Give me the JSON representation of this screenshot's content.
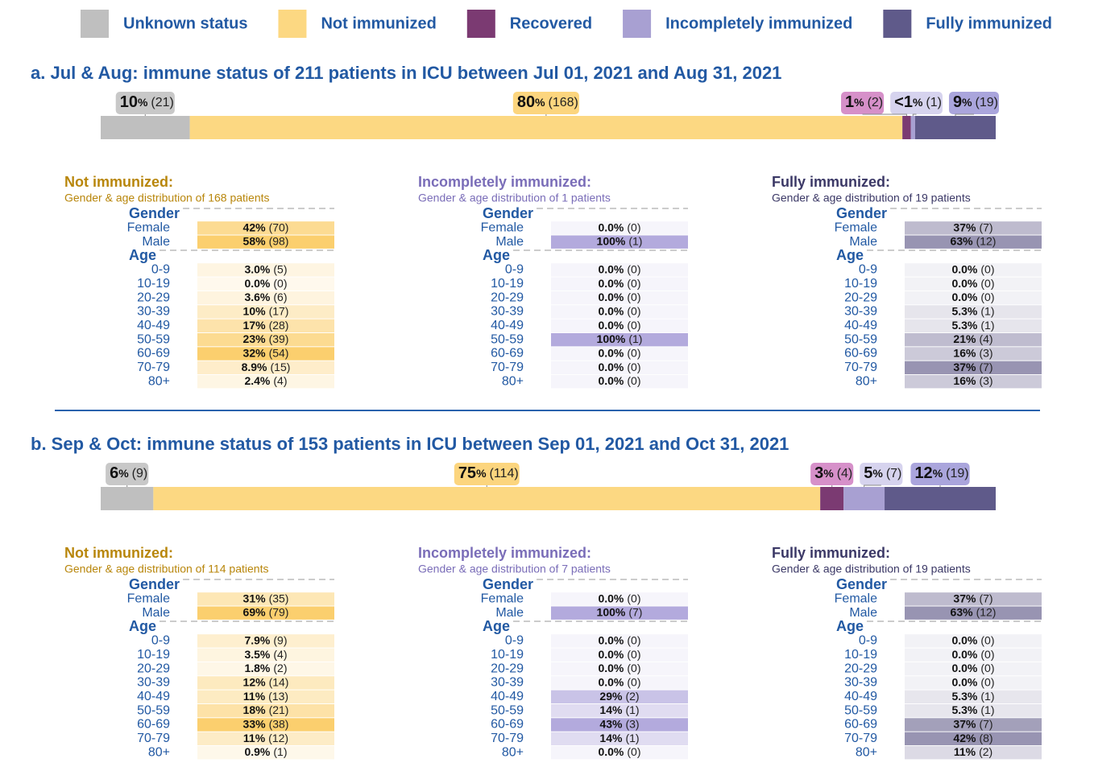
{
  "legend": [
    {
      "name": "Unknown status",
      "color": "#bfbfbf",
      "label_color": "#c8c8c8"
    },
    {
      "name": "Not immunized",
      "color": "#fcd882",
      "label_color": "#fcd57e"
    },
    {
      "name": "Recovered",
      "color": "#7b3a72",
      "label_color": "#d690c9"
    },
    {
      "name": "Incompletely immunized",
      "color": "#a8a0d2",
      "label_color": "#d6d3ee"
    },
    {
      "name": "Fully immunized",
      "color": "#5f5a8a",
      "label_color": "#aaa5dc"
    }
  ],
  "panels": [
    {
      "title": "a. Jul & Aug: immune status of 211 patients in ICU between Jul 01, 2021 and Aug 31, 2021",
      "segments": [
        {
          "value": 21,
          "pct": "10",
          "unit": "%",
          "count": "(21)"
        },
        {
          "value": 168,
          "pct": "80",
          "unit": "%",
          "count": "(168)"
        },
        {
          "value": 2,
          "pct": "1",
          "unit": "%",
          "count": "(2)"
        },
        {
          "value": 1,
          "pct": "<1",
          "unit": "%",
          "count": "(1)"
        },
        {
          "value": 19,
          "pct": "9",
          "unit": "%",
          "count": "(19)"
        }
      ],
      "breakdowns": [
        {
          "title": "Not immunized:",
          "subtitle": "Gender & age distribution of 168 patients",
          "title_color": "#b8860b",
          "cell_color": "#fbcf6e",
          "groups": [
            {
              "name": "Gender",
              "rows": [
                {
                  "label": "Female",
                  "pct": "42%",
                  "count": "(70)",
                  "value": 70
                },
                {
                  "label": "Male",
                  "pct": "58%",
                  "count": "(98)",
                  "value": 98
                }
              ]
            },
            {
              "name": "Age",
              "rows": [
                {
                  "label": "0-9",
                  "pct": "3.0%",
                  "count": "(5)",
                  "value": 5
                },
                {
                  "label": "10-19",
                  "pct": "0.0%",
                  "count": "(0)",
                  "value": 0
                },
                {
                  "label": "20-29",
                  "pct": "3.6%",
                  "count": "(6)",
                  "value": 6
                },
                {
                  "label": "30-39",
                  "pct": "10%",
                  "count": "(17)",
                  "value": 17
                },
                {
                  "label": "40-49",
                  "pct": "17%",
                  "count": "(28)",
                  "value": 28
                },
                {
                  "label": "50-59",
                  "pct": "23%",
                  "count": "(39)",
                  "value": 39
                },
                {
                  "label": "60-69",
                  "pct": "32%",
                  "count": "(54)",
                  "value": 54
                },
                {
                  "label": "70-79",
                  "pct": "8.9%",
                  "count": "(15)",
                  "value": 15
                },
                {
                  "label": "80+",
                  "pct": "2.4%",
                  "count": "(4)",
                  "value": 4
                }
              ]
            }
          ]
        },
        {
          "title": "Incompletely immunized:",
          "subtitle": "Gender & age distribution of 1 patients",
          "title_color": "#7a6db8",
          "cell_color": "#b3aadd",
          "groups": [
            {
              "name": "Gender",
              "rows": [
                {
                  "label": "Female",
                  "pct": "0.0%",
                  "count": "(0)",
                  "value": 0
                },
                {
                  "label": "Male",
                  "pct": "100%",
                  "count": "(1)",
                  "value": 1
                }
              ]
            },
            {
              "name": "Age",
              "rows": [
                {
                  "label": "0-9",
                  "pct": "0.0%",
                  "count": "(0)",
                  "value": 0
                },
                {
                  "label": "10-19",
                  "pct": "0.0%",
                  "count": "(0)",
                  "value": 0
                },
                {
                  "label": "20-29",
                  "pct": "0.0%",
                  "count": "(0)",
                  "value": 0
                },
                {
                  "label": "30-39",
                  "pct": "0.0%",
                  "count": "(0)",
                  "value": 0
                },
                {
                  "label": "40-49",
                  "pct": "0.0%",
                  "count": "(0)",
                  "value": 0
                },
                {
                  "label": "50-59",
                  "pct": "100%",
                  "count": "(1)",
                  "value": 1
                },
                {
                  "label": "60-69",
                  "pct": "0.0%",
                  "count": "(0)",
                  "value": 0
                },
                {
                  "label": "70-79",
                  "pct": "0.0%",
                  "count": "(0)",
                  "value": 0
                },
                {
                  "label": "80+",
                  "pct": "0.0%",
                  "count": "(0)",
                  "value": 0
                }
              ]
            }
          ]
        },
        {
          "title": "Fully immunized:",
          "subtitle": "Gender & age distribution of 19 patients",
          "title_color": "#3b3866",
          "cell_color": "#9894b2",
          "groups": [
            {
              "name": "Gender",
              "rows": [
                {
                  "label": "Female",
                  "pct": "37%",
                  "count": "(7)",
                  "value": 7
                },
                {
                  "label": "Male",
                  "pct": "63%",
                  "count": "(12)",
                  "value": 12
                }
              ]
            },
            {
              "name": "Age",
              "rows": [
                {
                  "label": "0-9",
                  "pct": "0.0%",
                  "count": "(0)",
                  "value": 0
                },
                {
                  "label": "10-19",
                  "pct": "0.0%",
                  "count": "(0)",
                  "value": 0
                },
                {
                  "label": "20-29",
                  "pct": "0.0%",
                  "count": "(0)",
                  "value": 0
                },
                {
                  "label": "30-39",
                  "pct": "5.3%",
                  "count": "(1)",
                  "value": 1
                },
                {
                  "label": "40-49",
                  "pct": "5.3%",
                  "count": "(1)",
                  "value": 1
                },
                {
                  "label": "50-59",
                  "pct": "21%",
                  "count": "(4)",
                  "value": 4
                },
                {
                  "label": "60-69",
                  "pct": "16%",
                  "count": "(3)",
                  "value": 3
                },
                {
                  "label": "70-79",
                  "pct": "37%",
                  "count": "(7)",
                  "value": 7
                },
                {
                  "label": "80+",
                  "pct": "16%",
                  "count": "(3)",
                  "value": 3
                }
              ]
            }
          ]
        }
      ]
    },
    {
      "title": "b. Sep & Oct: immune status of 153 patients in ICU between Sep 01, 2021 and Oct 31, 2021",
      "segments": [
        {
          "value": 9,
          "pct": "6",
          "unit": "%",
          "count": "(9)"
        },
        {
          "value": 114,
          "pct": "75",
          "unit": "%",
          "count": "(114)"
        },
        {
          "value": 4,
          "pct": "3",
          "unit": "%",
          "count": "(4)"
        },
        {
          "value": 7,
          "pct": "5",
          "unit": "%",
          "count": "(7)"
        },
        {
          "value": 19,
          "pct": "12",
          "unit": "%",
          "count": "(19)"
        }
      ],
      "breakdowns": [
        {
          "title": "Not immunized:",
          "subtitle": "Gender & age distribution of 114 patients",
          "title_color": "#b8860b",
          "cell_color": "#fbcf6e",
          "groups": [
            {
              "name": "Gender",
              "rows": [
                {
                  "label": "Female",
                  "pct": "31%",
                  "count": "(35)",
                  "value": 35
                },
                {
                  "label": "Male",
                  "pct": "69%",
                  "count": "(79)",
                  "value": 79
                }
              ]
            },
            {
              "name": "Age",
              "rows": [
                {
                  "label": "0-9",
                  "pct": "7.9%",
                  "count": "(9)",
                  "value": 9
                },
                {
                  "label": "10-19",
                  "pct": "3.5%",
                  "count": "(4)",
                  "value": 4
                },
                {
                  "label": "20-29",
                  "pct": "1.8%",
                  "count": "(2)",
                  "value": 2
                },
                {
                  "label": "30-39",
                  "pct": "12%",
                  "count": "(14)",
                  "value": 14
                },
                {
                  "label": "40-49",
                  "pct": "11%",
                  "count": "(13)",
                  "value": 13
                },
                {
                  "label": "50-59",
                  "pct": "18%",
                  "count": "(21)",
                  "value": 21
                },
                {
                  "label": "60-69",
                  "pct": "33%",
                  "count": "(38)",
                  "value": 38
                },
                {
                  "label": "70-79",
                  "pct": "11%",
                  "count": "(12)",
                  "value": 12
                },
                {
                  "label": "80+",
                  "pct": "0.9%",
                  "count": "(1)",
                  "value": 1
                }
              ]
            }
          ]
        },
        {
          "title": "Incompletely immunized:",
          "subtitle": "Gender & age distribution of 7 patients",
          "title_color": "#7a6db8",
          "cell_color": "#b3aadd",
          "groups": [
            {
              "name": "Gender",
              "rows": [
                {
                  "label": "Female",
                  "pct": "0.0%",
                  "count": "(0)",
                  "value": 0
                },
                {
                  "label": "Male",
                  "pct": "100%",
                  "count": "(7)",
                  "value": 7
                }
              ]
            },
            {
              "name": "Age",
              "rows": [
                {
                  "label": "0-9",
                  "pct": "0.0%",
                  "count": "(0)",
                  "value": 0
                },
                {
                  "label": "10-19",
                  "pct": "0.0%",
                  "count": "(0)",
                  "value": 0
                },
                {
                  "label": "20-29",
                  "pct": "0.0%",
                  "count": "(0)",
                  "value": 0
                },
                {
                  "label": "30-39",
                  "pct": "0.0%",
                  "count": "(0)",
                  "value": 0
                },
                {
                  "label": "40-49",
                  "pct": "29%",
                  "count": "(2)",
                  "value": 2
                },
                {
                  "label": "50-59",
                  "pct": "14%",
                  "count": "(1)",
                  "value": 1
                },
                {
                  "label": "60-69",
                  "pct": "43%",
                  "count": "(3)",
                  "value": 3
                },
                {
                  "label": "70-79",
                  "pct": "14%",
                  "count": "(1)",
                  "value": 1
                },
                {
                  "label": "80+",
                  "pct": "0.0%",
                  "count": "(0)",
                  "value": 0
                }
              ]
            }
          ]
        },
        {
          "title": "Fully immunized:",
          "subtitle": "Gender & age distribution of 19 patients",
          "title_color": "#3b3866",
          "cell_color": "#9894b2",
          "groups": [
            {
              "name": "Gender",
              "rows": [
                {
                  "label": "Female",
                  "pct": "37%",
                  "count": "(7)",
                  "value": 7
                },
                {
                  "label": "Male",
                  "pct": "63%",
                  "count": "(12)",
                  "value": 12
                }
              ]
            },
            {
              "name": "Age",
              "rows": [
                {
                  "label": "0-9",
                  "pct": "0.0%",
                  "count": "(0)",
                  "value": 0
                },
                {
                  "label": "10-19",
                  "pct": "0.0%",
                  "count": "(0)",
                  "value": 0
                },
                {
                  "label": "20-29",
                  "pct": "0.0%",
                  "count": "(0)",
                  "value": 0
                },
                {
                  "label": "30-39",
                  "pct": "0.0%",
                  "count": "(0)",
                  "value": 0
                },
                {
                  "label": "40-49",
                  "pct": "5.3%",
                  "count": "(1)",
                  "value": 1
                },
                {
                  "label": "50-59",
                  "pct": "5.3%",
                  "count": "(1)",
                  "value": 1
                },
                {
                  "label": "60-69",
                  "pct": "37%",
                  "count": "(7)",
                  "value": 7
                },
                {
                  "label": "70-79",
                  "pct": "42%",
                  "count": "(8)",
                  "value": 8
                },
                {
                  "label": "80+",
                  "pct": "11%",
                  "count": "(2)",
                  "value": 2
                }
              ]
            }
          ]
        }
      ]
    }
  ]
}
